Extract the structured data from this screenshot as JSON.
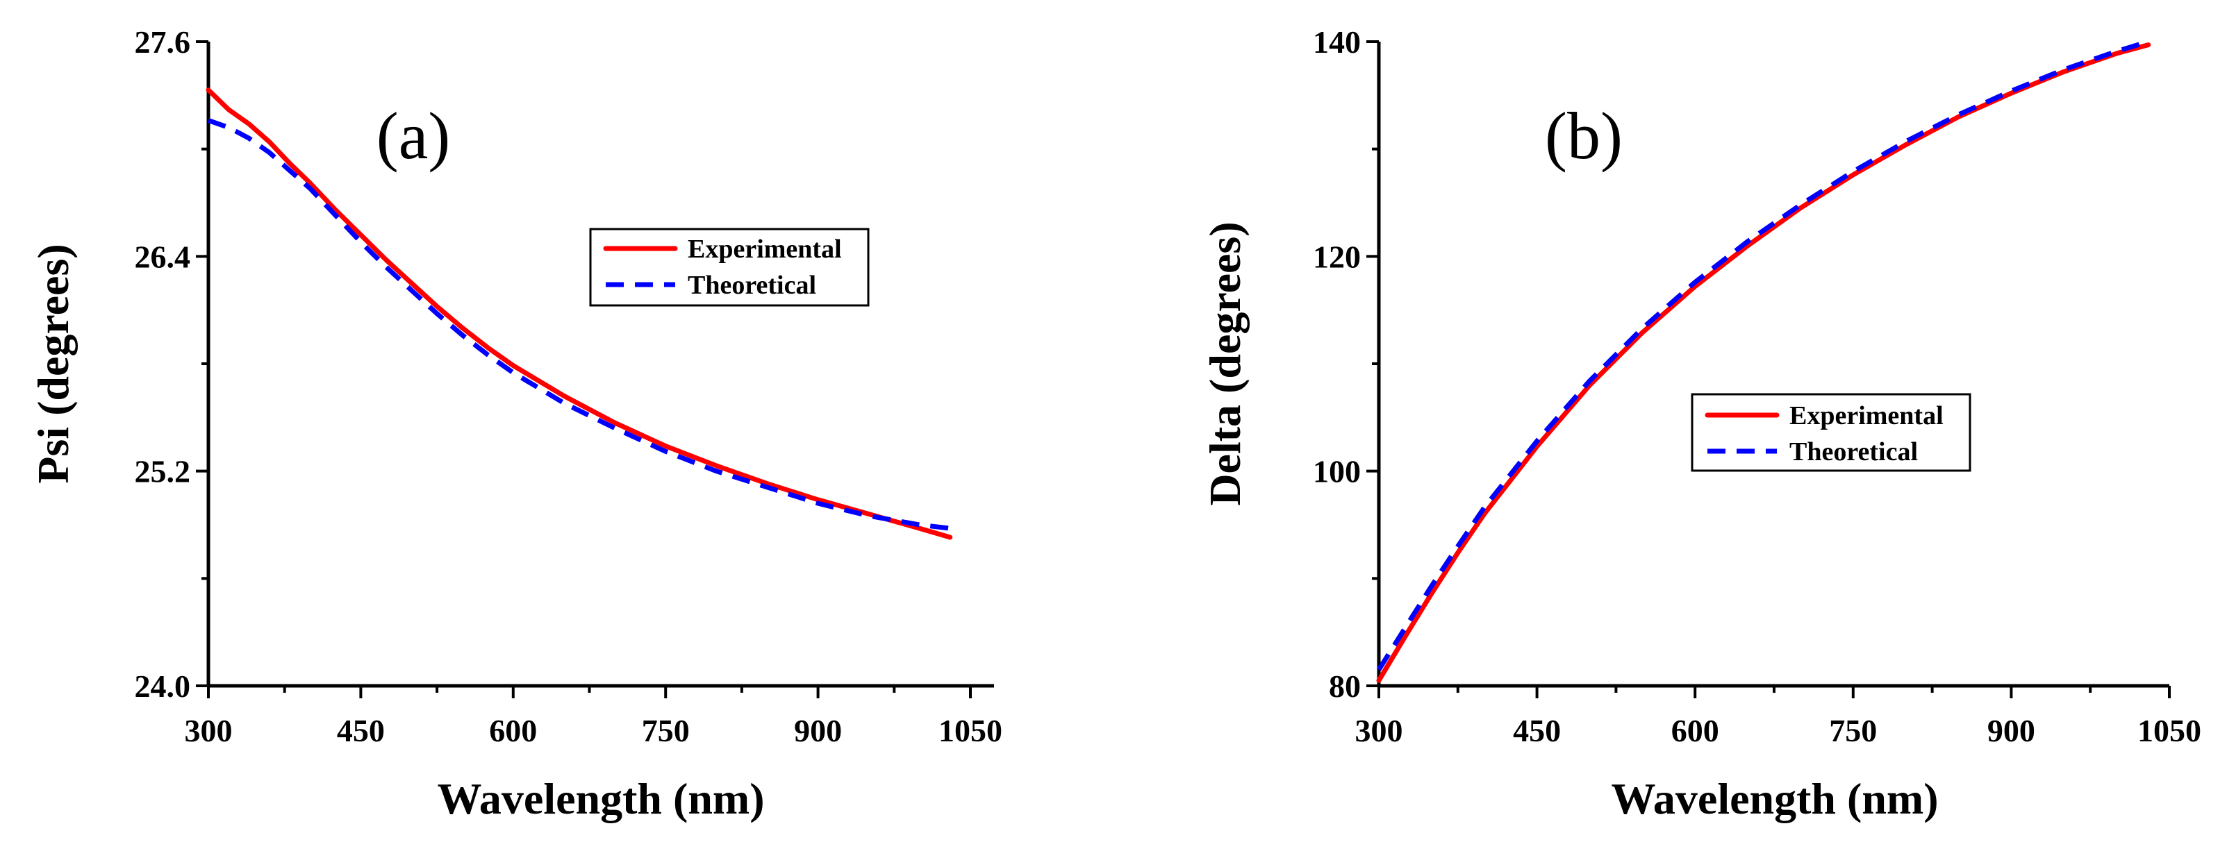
{
  "chart_data": [
    {
      "type": "line",
      "panel_label": "(a)",
      "title": "",
      "xlabel": "Wavelength (nm)",
      "ylabel": "Psi (degrees)",
      "xlim": [
        300,
        1050
      ],
      "ylim": [
        24.0,
        27.6
      ],
      "xticks": [
        "300",
        "450",
        "600",
        "750",
        "900",
        "1050"
      ],
      "yticks": [
        "24.0",
        "25.2",
        "26.4",
        "27.6"
      ],
      "legend_position": "top-center",
      "series": [
        {
          "name": "Experimental",
          "color": "#ff0000",
          "style": "solid",
          "x": [
            300,
            320,
            340,
            360,
            380,
            400,
            425,
            450,
            475,
            500,
            525,
            550,
            575,
            600,
            650,
            700,
            750,
            800,
            850,
            900,
            950,
            1000,
            1030
          ],
          "y": [
            27.33,
            27.22,
            27.14,
            27.04,
            26.92,
            26.81,
            26.66,
            26.52,
            26.38,
            26.25,
            26.12,
            26.0,
            25.89,
            25.79,
            25.62,
            25.47,
            25.34,
            25.23,
            25.13,
            25.04,
            24.96,
            24.88,
            24.83
          ]
        },
        {
          "name": "Theoretical",
          "color": "#0000ff",
          "style": "dashed",
          "x": [
            300,
            320,
            340,
            360,
            380,
            400,
            425,
            450,
            475,
            500,
            525,
            550,
            575,
            600,
            650,
            700,
            750,
            800,
            850,
            900,
            950,
            1000,
            1030
          ],
          "y": [
            27.16,
            27.12,
            27.06,
            26.98,
            26.88,
            26.78,
            26.63,
            26.48,
            26.34,
            26.21,
            26.08,
            25.96,
            25.85,
            25.75,
            25.58,
            25.44,
            25.31,
            25.2,
            25.11,
            25.02,
            24.95,
            24.9,
            24.88
          ]
        }
      ]
    },
    {
      "type": "line",
      "panel_label": "(b)",
      "title": "",
      "xlabel": "Wavelength (nm)",
      "ylabel": "Delta (degrees)",
      "xlim": [
        300,
        1050
      ],
      "ylim": [
        80,
        140
      ],
      "xticks": [
        "300",
        "450",
        "600",
        "750",
        "900",
        "1050"
      ],
      "yticks": [
        "80",
        "100",
        "120",
        "140"
      ],
      "legend_position": "center-right",
      "series": [
        {
          "name": "Experimental",
          "color": "#ff0000",
          "style": "solid",
          "x": [
            300,
            325,
            350,
            375,
            400,
            450,
            500,
            550,
            600,
            650,
            700,
            750,
            800,
            850,
            900,
            950,
            1000,
            1030
          ],
          "y": [
            80.5,
            84.6,
            88.6,
            92.4,
            96.0,
            102.3,
            108.0,
            112.9,
            117.2,
            121.0,
            124.5,
            127.6,
            130.4,
            133.0,
            135.2,
            137.2,
            138.9,
            139.7
          ]
        },
        {
          "name": "Theoretical",
          "color": "#0000ff",
          "style": "dashed",
          "x": [
            300,
            325,
            350,
            375,
            400,
            450,
            500,
            550,
            600,
            650,
            700,
            750,
            800,
            850,
            900,
            950,
            1000,
            1030
          ],
          "y": [
            81.5,
            85.4,
            89.3,
            93.0,
            96.6,
            102.8,
            108.4,
            113.3,
            117.6,
            121.4,
            124.8,
            127.9,
            130.7,
            133.2,
            135.4,
            137.4,
            139.1,
            140.0
          ]
        }
      ]
    }
  ]
}
